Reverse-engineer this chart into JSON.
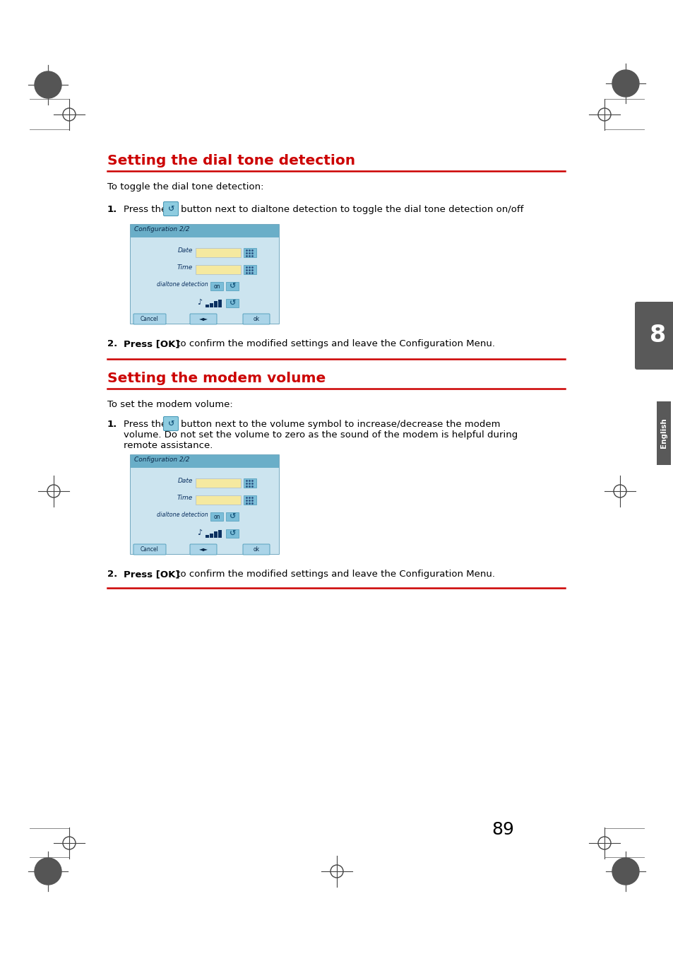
{
  "bg_color": "#ffffff",
  "page_number": "89",
  "section1_title": "Setting the dial tone detection",
  "section1_intro": "To toggle the dial tone detection:",
  "section1_step1_pre": "Press the",
  "section1_step1b": "button next to dialtone detection to toggle the dial tone detection on/off",
  "section1_step2_bold": "Press [OK]",
  "section1_step2_rest": " to confirm the modified settings and leave the Configuration Menu.",
  "section2_title": "Setting the modem volume",
  "section2_intro": "To set the modem volume:",
  "section2_step1_pre": "Press the",
  "section2_step1_line1": "button next to the volume symbol to increase/decrease the modem",
  "section2_step1_line2": "volume. Do not set the volume to zero as the sound of the modem is helpful during",
  "section2_step1_line3": "remote assistance.",
  "section2_step2_bold": "Press [OK]",
  "section2_step2_rest": " to confirm the modified settings and leave the Configuration Menu.",
  "title_color": "#cc0000",
  "text_color": "#000000",
  "line_color": "#cc0000",
  "tab_bg": "#b8d9e8",
  "tab_header_bg": "#6aaec8",
  "tab_content_bg": "#cce4ef",
  "tab_title": "Configuration 2/2",
  "tab_input_color": "#f5e9a0",
  "tab_border_color": "#5a9ab5",
  "chapter_tab_color": "#595959",
  "chapter_number": "8",
  "english_label": "English"
}
